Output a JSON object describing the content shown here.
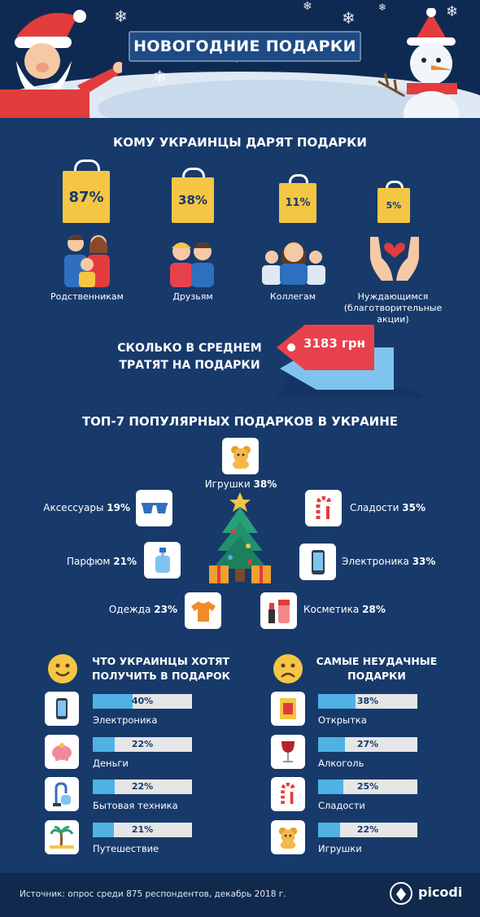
{
  "header": {
    "title": "НОВОГОДНИЕ ПОДАРКИ"
  },
  "recipients": {
    "title": "КОМУ УКРАИНЦЫ ДАРЯТ ПОДАРКИ",
    "items": [
      {
        "percent": "87%",
        "label": "Родственникам",
        "icon": "family-icon"
      },
      {
        "percent": "38%",
        "label": "Друзьям",
        "icon": "friends-icon"
      },
      {
        "percent": "11%",
        "label": "Коллегам",
        "icon": "colleagues-icon"
      },
      {
        "percent": "5%",
        "label": "Нуждающимся\n(благотворительные акции)",
        "icon": "charity-hands-icon"
      }
    ]
  },
  "spend": {
    "label": "СКОЛЬКО В СРЕДНЕМ\nТРАТЯТ НА ПОДАРКИ",
    "value": "3183 грн"
  },
  "top7": {
    "title": "ТОП-7 ПОПУЛЯРНЫХ ПОДАРКОВ В УКРАИНЕ",
    "items": [
      {
        "name": "Игрушки",
        "percent": "38%",
        "icon": "teddy-bear-icon"
      },
      {
        "name": "Аксессуары",
        "percent": "19%",
        "icon": "sunglasses-icon"
      },
      {
        "name": "Сладости",
        "percent": "35%",
        "icon": "candy-cane-icon"
      },
      {
        "name": "Парфюм",
        "percent": "21%",
        "icon": "perfume-icon"
      },
      {
        "name": "Электроника",
        "percent": "33%",
        "icon": "smartphone-icon"
      },
      {
        "name": "Одежда",
        "percent": "23%",
        "icon": "tshirt-icon"
      },
      {
        "name": "Косметика",
        "percent": "28%",
        "icon": "cosmetics-icon"
      }
    ]
  },
  "wanted": {
    "title": "ЧТО УКРАИНЦЫ ХОТЯТ\nПОЛУЧИТЬ В ПОДАРОК",
    "items": [
      {
        "label": "Электроника",
        "percent": "40%",
        "value": 40,
        "icon": "smartphone-icon"
      },
      {
        "label": "Деньги",
        "percent": "22%",
        "value": 22,
        "icon": "piggy-bank-icon"
      },
      {
        "label": "Бытовая техника",
        "percent": "22%",
        "value": 22,
        "icon": "vacuum-icon"
      },
      {
        "label": "Путешествие",
        "percent": "21%",
        "value": 21,
        "icon": "palm-tree-icon"
      }
    ]
  },
  "worst": {
    "title": "САМЫЕ НЕУДАЧНЫЕ\nПОДАРКИ",
    "items": [
      {
        "label": "Открытка",
        "percent": "38%",
        "value": 38,
        "icon": "postcard-icon"
      },
      {
        "label": "Алкоголь",
        "percent": "27%",
        "value": 27,
        "icon": "wine-glass-icon"
      },
      {
        "label": "Сладости",
        "percent": "25%",
        "value": 25,
        "icon": "candy-cane-icon"
      },
      {
        "label": "Игрушки",
        "percent": "22%",
        "value": 22,
        "icon": "teddy-bear-icon"
      }
    ]
  },
  "footer": {
    "source": "Источник: опрос среди 875 респондентов, декабрь 2018 г.",
    "brand": "picodi"
  },
  "colors": {
    "background": "#173a6b",
    "accent_yellow": "#f4c644",
    "bar_blue": "#4fb2e3",
    "price_red": "#e8414e"
  }
}
